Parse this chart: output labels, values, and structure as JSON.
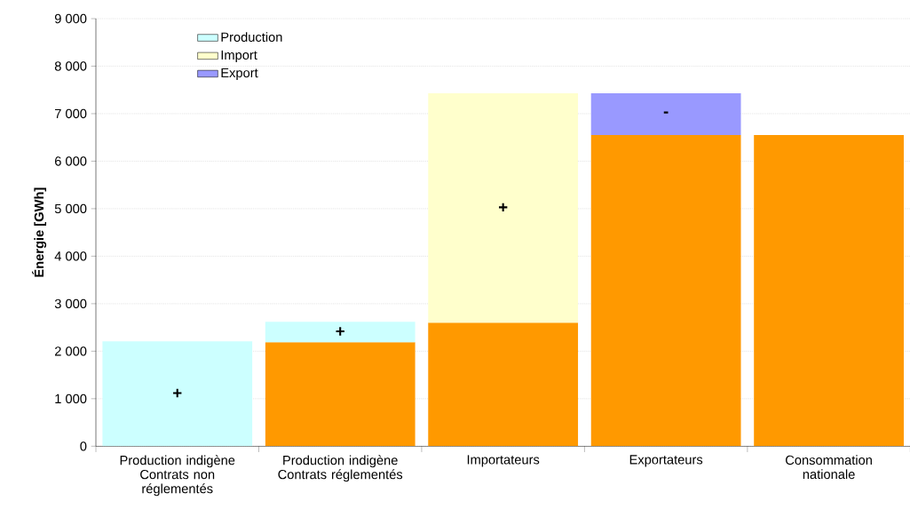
{
  "chart_data": {
    "type": "bar",
    "stacked": true,
    "ylabel": "Énergie [GWh]",
    "categories": [
      "Production indigène Contrats non réglementés",
      "Production indigène Contrats réglementés",
      "Importateurs",
      "Exportateurs",
      "Consommation nationale"
    ],
    "series": [
      {
        "color": "#ff9900",
        "values": [
          null,
          2190,
          2600,
          6550,
          6550
        ]
      },
      {
        "name": "Production",
        "color": "#ccffff",
        "values": [
          2210,
          430,
          null,
          null,
          null
        ]
      },
      {
        "name": "Import",
        "color": "#ffffcc",
        "values": [
          null,
          null,
          4830,
          null,
          null
        ]
      },
      {
        "name": "Export",
        "color": "#9999ff",
        "values": [
          null,
          null,
          null,
          880,
          null
        ]
      }
    ],
    "ylim": [
      0,
      9000
    ],
    "yticks": [
      0,
      {
        "value": 1000,
        "label": "1 000"
      },
      {
        "value": 2000,
        "label": "2 000"
      },
      {
        "value": 3000,
        "label": "3 000"
      },
      {
        "value": 4000,
        "label": "4 000"
      },
      {
        "value": 5000,
        "label": "5 000"
      },
      {
        "value": 6000,
        "label": "6 000"
      },
      {
        "value": 7000,
        "label": "7 000"
      },
      {
        "value": 8000,
        "label": "8 000"
      },
      {
        "value": 9000,
        "label": "9 000"
      }
    ],
    "grid": "y",
    "legend": "top left",
    "annotations": [
      "+",
      "+",
      "+",
      "-"
    ]
  }
}
